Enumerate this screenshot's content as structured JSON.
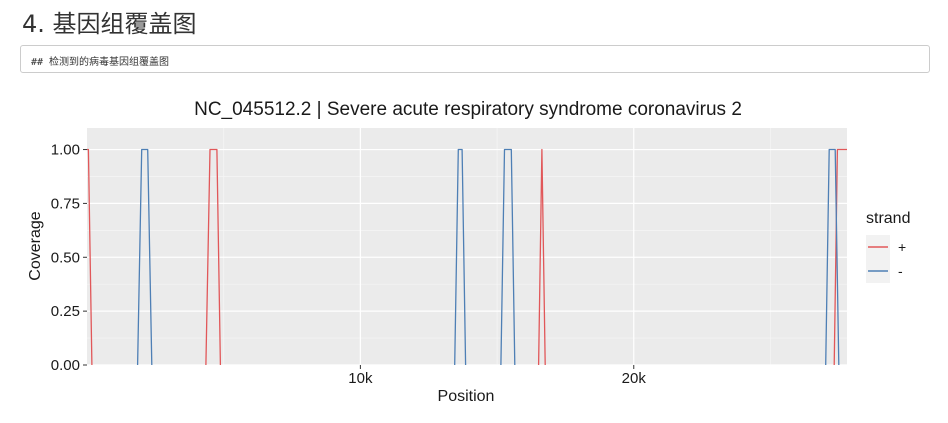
{
  "heading": "4. 基因组覆盖图",
  "code_text": "## 检测到的病毒基因组覆盖图",
  "chart_data": {
    "type": "line",
    "title": "NC_045512.2 | Severe acute respiratory syndrome coronavirus 2",
    "xlabel": "Position",
    "ylabel": "Coverage",
    "xlim": [
      0,
      27800
    ],
    "ylim": [
      0,
      1.1
    ],
    "x_ticks": [
      10000,
      20000
    ],
    "x_tick_labels": [
      "10k",
      "20k"
    ],
    "y_ticks": [
      0,
      0.25,
      0.5,
      0.75,
      1.0
    ],
    "y_tick_labels": [
      "0.00",
      "0.25",
      "0.50",
      "0.75",
      "1.00"
    ],
    "grid": true,
    "legend": {
      "title": "strand",
      "position": "right",
      "entries": [
        {
          "label": "+",
          "color": "#E15759"
        },
        {
          "label": "-",
          "color": "#4E7FB5"
        }
      ]
    },
    "series": [
      {
        "name": "+",
        "color": "#E15759",
        "segments": [
          [
            [
              0,
              1.0
            ],
            [
              50,
              1.0
            ],
            [
              180,
              0
            ]
          ],
          [
            [
              4350,
              0
            ],
            [
              4500,
              1.0
            ],
            [
              4750,
              1.0
            ],
            [
              4880,
              0
            ]
          ],
          [
            [
              16520,
              0
            ],
            [
              16640,
              1.0
            ],
            [
              16760,
              0
            ]
          ],
          [
            [
              27330,
              0
            ],
            [
              27450,
              1.0
            ],
            [
              27800,
              1.0
            ]
          ]
        ]
      },
      {
        "name": "-",
        "color": "#4E7FB5",
        "segments": [
          [
            [
              1850,
              0
            ],
            [
              2000,
              1.0
            ],
            [
              2220,
              1.0
            ],
            [
              2370,
              0
            ]
          ],
          [
            [
              13450,
              0
            ],
            [
              13580,
              1.0
            ],
            [
              13720,
              1.0
            ],
            [
              13850,
              0
            ]
          ],
          [
            [
              15140,
              0
            ],
            [
              15270,
              1.0
            ],
            [
              15520,
              1.0
            ],
            [
              15650,
              0
            ]
          ],
          [
            [
              27020,
              0
            ],
            [
              27150,
              1.0
            ],
            [
              27370,
              1.0
            ],
            [
              27500,
              0
            ]
          ]
        ]
      }
    ]
  }
}
